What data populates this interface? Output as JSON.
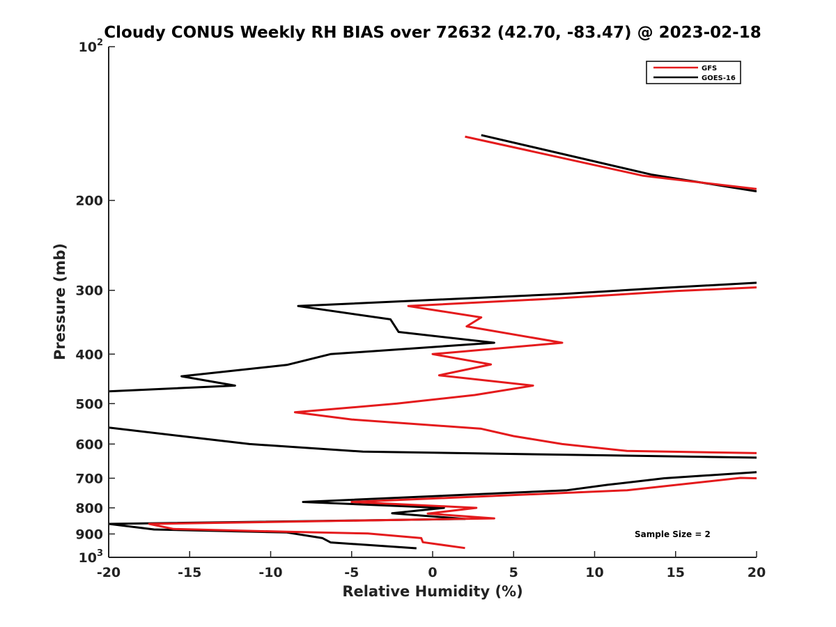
{
  "chart_data": {
    "type": "line",
    "title": "Cloudy CONUS Weekly RH BIAS over 72632 (42.70, -83.47) @ 2023-02-18",
    "xlabel": "Relative Humidity (%)",
    "ylabel": "Pressure (mb)",
    "xlim": [
      -20,
      20
    ],
    "ylim": [
      1000,
      100
    ],
    "y_scale": "log",
    "x_ticks": [
      -20,
      -15,
      -10,
      -5,
      0,
      5,
      10,
      15,
      20
    ],
    "x_tick_labels": [
      "-20",
      "-15",
      "-10",
      "-5",
      "0",
      "5",
      "10",
      "15",
      "20"
    ],
    "y_ticks": [
      100,
      200,
      300,
      400,
      500,
      600,
      700,
      800,
      900,
      1000
    ],
    "y_tick_labels": [
      {
        "base": "10",
        "exp": "2"
      },
      {
        "base": "200",
        "exp": ""
      },
      {
        "base": "300",
        "exp": ""
      },
      {
        "base": "400",
        "exp": ""
      },
      {
        "base": "500",
        "exp": ""
      },
      {
        "base": "600",
        "exp": ""
      },
      {
        "base": "700",
        "exp": ""
      },
      {
        "base": "800",
        "exp": ""
      },
      {
        "base": "900",
        "exp": ""
      },
      {
        "base": "10",
        "exp": "3"
      }
    ],
    "grid": false,
    "legend_position": "top-right",
    "annotation": "Sample Size = 2",
    "series": [
      {
        "name": "GFS",
        "color": "#e41a1c",
        "segments": [
          [
            [
              2.0,
              150
            ],
            [
              13.0,
              179
            ],
            [
              20.0,
              190
            ]
          ],
          [
            [
              20.0,
              296
            ],
            [
              15.0,
              301
            ],
            [
              7.0,
              312
            ],
            [
              -1.5,
              322
            ],
            [
              3.0,
              339
            ],
            [
              2.1,
              353
            ],
            [
              8.0,
              380
            ],
            [
              0.0,
              400
            ],
            [
              3.6,
              419
            ],
            [
              0.4,
              440
            ],
            [
              6.2,
              461
            ],
            [
              2.6,
              481
            ],
            [
              -2.2,
              500
            ],
            [
              -8.5,
              520
            ],
            [
              -5.0,
              537
            ],
            [
              3.0,
              560
            ],
            [
              5.0,
              579
            ],
            [
              8.0,
              600
            ],
            [
              12.0,
              619
            ],
            [
              20.0,
              625
            ]
          ],
          [
            [
              20.0,
              700
            ],
            [
              19.0,
              699
            ],
            [
              12.0,
              739
            ],
            [
              -5.0,
              779
            ],
            [
              2.7,
              800
            ],
            [
              -0.3,
              821
            ],
            [
              3.8,
              839
            ],
            [
              -17.5,
              860
            ],
            [
              -16.0,
              880
            ],
            [
              -9.0,
              891
            ],
            [
              -4.0,
              898
            ],
            [
              -0.7,
              917
            ],
            [
              -0.6,
              934
            ],
            [
              2.0,
              959
            ]
          ]
        ]
      },
      {
        "name": "GOES-16",
        "color": "#000000",
        "segments": [
          [
            [
              3.0,
              149
            ],
            [
              13.5,
              178
            ],
            [
              20.0,
              192
            ]
          ],
          [
            [
              20.0,
              290
            ],
            [
              14.0,
              297
            ],
            [
              8.0,
              305
            ],
            [
              -8.3,
              322
            ],
            [
              -2.6,
              342
            ],
            [
              -2.1,
              362
            ],
            [
              3.8,
              380
            ],
            [
              -6.3,
              400
            ],
            [
              -9.0,
              420
            ],
            [
              -15.5,
              442
            ],
            [
              -12.2,
              461
            ],
            [
              -20.0,
              473
            ]
          ],
          [
            [
              -20.0,
              557
            ],
            [
              -15.5,
              579
            ],
            [
              -11.3,
              600
            ],
            [
              -4.3,
              621
            ],
            [
              20.0,
              638
            ]
          ],
          [
            [
              20.0,
              681
            ],
            [
              14.3,
              700
            ],
            [
              10.8,
              721
            ],
            [
              8.3,
              739
            ],
            [
              -8.0,
              779
            ],
            [
              0.7,
              800
            ],
            [
              -2.5,
              820
            ],
            [
              2.0,
              841
            ],
            [
              -20.0,
              860
            ],
            [
              -17.2,
              882
            ],
            [
              -9.0,
              894
            ],
            [
              -6.8,
              917
            ],
            [
              -6.3,
              935
            ],
            [
              -1.0,
              960
            ]
          ]
        ]
      }
    ]
  }
}
